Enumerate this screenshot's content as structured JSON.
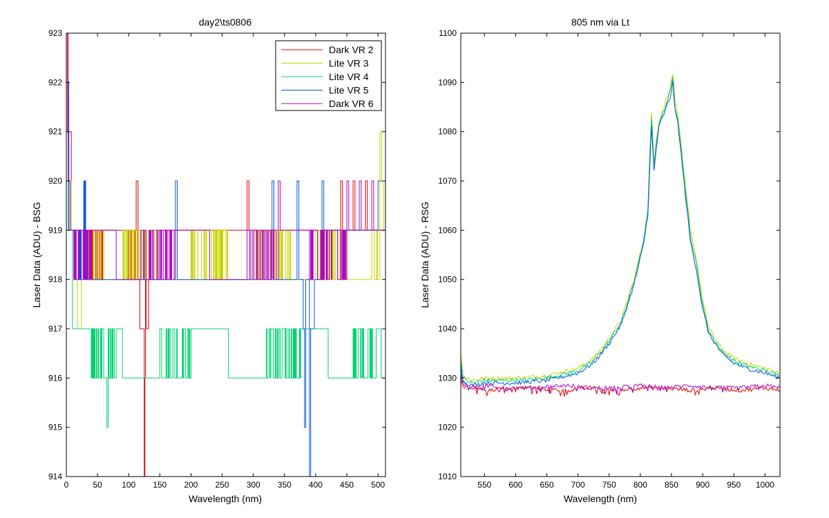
{
  "chart_data": [
    {
      "type": "line",
      "title": "day2\\ts0806",
      "xlabel": "Wavelength (nm)",
      "ylabel": "Laser Data (ADU) - BSG",
      "xlim": [
        0,
        512
      ],
      "ylim": [
        914,
        923
      ],
      "xticks": [
        0,
        50,
        100,
        150,
        200,
        250,
        300,
        350,
        400,
        450,
        500
      ],
      "yticks": [
        914,
        915,
        916,
        917,
        918,
        919,
        920,
        921,
        922,
        923
      ],
      "grid": false,
      "legend_position": "top-right",
      "series": [
        {
          "name": "Dark VR 2",
          "color": "#e00000",
          "baseline": 919,
          "levels": [
            [
              0,
              923
            ],
            [
              2,
              920.5
            ],
            [
              5,
              921
            ],
            [
              8,
              919
            ],
            [
              30,
              918.5
            ],
            [
              60,
              919
            ],
            [
              100,
              918.5
            ],
            [
              112,
              920
            ],
            [
              115,
              918
            ],
            [
              118,
              917
            ],
            [
              125,
              914
            ],
            [
              126,
              916
            ],
            [
              127,
              918
            ],
            [
              128,
              917
            ],
            [
              132,
              918
            ],
            [
              140,
              919
            ],
            [
              290,
              920
            ],
            [
              293,
              919
            ],
            [
              440,
              920
            ],
            [
              443,
              919
            ],
            [
              460,
              920
            ],
            [
              463,
              919
            ],
            [
              480,
              920
            ],
            [
              483,
              919
            ],
            [
              512,
              919
            ]
          ]
        },
        {
          "name": "Lite VR 3",
          "color": "#c8d400",
          "baseline": 918,
          "levels": [
            [
              0,
              920
            ],
            [
              8,
              919
            ],
            [
              14,
              918
            ],
            [
              18,
              917
            ],
            [
              24,
              918
            ],
            [
              28,
              920
            ],
            [
              31,
              918.5
            ],
            [
              60,
              918
            ],
            [
              90,
              918.5
            ],
            [
              150,
              918
            ],
            [
              200,
              918.5
            ],
            [
              260,
              918
            ],
            [
              300,
              918.5
            ],
            [
              360,
              918
            ],
            [
              400,
              918.5
            ],
            [
              450,
              918
            ],
            [
              490,
              918.5
            ],
            [
              503,
              921
            ],
            [
              506,
              920
            ],
            [
              509,
              919
            ],
            [
              512,
              919
            ]
          ]
        },
        {
          "name": "Lite VR 4",
          "color": "#00d070",
          "baseline": 916,
          "levels": [
            [
              0,
              922
            ],
            [
              3,
              919
            ],
            [
              10,
              917
            ],
            [
              30,
              916.5
            ],
            [
              60,
              916
            ],
            [
              65,
              915
            ],
            [
              67,
              916.5
            ],
            [
              80,
              917
            ],
            [
              90,
              916
            ],
            [
              150,
              916.5
            ],
            [
              200,
              917
            ],
            [
              260,
              916
            ],
            [
              320,
              916.5
            ],
            [
              380,
              917
            ],
            [
              420,
              916
            ],
            [
              460,
              916.5
            ],
            [
              500,
              917
            ],
            [
              505,
              916
            ],
            [
              512,
              917
            ]
          ]
        },
        {
          "name": "Lite VR 5",
          "color": "#0055e0",
          "baseline": 918,
          "levels": [
            [
              0,
              922
            ],
            [
              4,
              919
            ],
            [
              20,
              918.5
            ],
            [
              28,
              919.5
            ],
            [
              31,
              918
            ],
            [
              175,
              920
            ],
            [
              178,
              918
            ],
            [
              330,
              920
            ],
            [
              333,
              918
            ],
            [
              370,
              920
            ],
            [
              373,
              918
            ],
            [
              380,
              917
            ],
            [
              382,
              915
            ],
            [
              384,
              918
            ],
            [
              390,
              914
            ],
            [
              392,
              917
            ],
            [
              398,
              918
            ],
            [
              410,
              920
            ],
            [
              413,
              919
            ],
            [
              500,
              920
            ],
            [
              512,
              919
            ]
          ]
        },
        {
          "name": "Dark VR 6",
          "color": "#b000c8",
          "baseline": 919,
          "levels": [
            [
              0,
              923
            ],
            [
              3,
              920
            ],
            [
              6,
              919
            ],
            [
              12,
              918.5
            ],
            [
              40,
              919
            ],
            [
              80,
              918
            ],
            [
              120,
              918.5
            ],
            [
              175,
              919
            ],
            [
              230,
              918
            ],
            [
              290,
              918.5
            ],
            [
              340,
              920
            ],
            [
              343,
              919
            ],
            [
              390,
              918.5
            ],
            [
              450,
              920
            ],
            [
              453,
              919
            ],
            [
              470,
              920
            ],
            [
              473,
              919
            ],
            [
              490,
              920
            ],
            [
              493,
              919
            ],
            [
              512,
              919
            ]
          ]
        }
      ]
    },
    {
      "type": "line",
      "title": "805 nm via Lt",
      "xlabel": "Wavelength (nm)",
      "ylabel": "Laser Data (ADU) - RSG",
      "xlim": [
        512,
        1024
      ],
      "ylim": [
        1010,
        1100
      ],
      "xticks": [
        550,
        600,
        650,
        700,
        750,
        800,
        850,
        900,
        950,
        1000
      ],
      "yticks": [
        1010,
        1020,
        1030,
        1040,
        1050,
        1060,
        1070,
        1080,
        1090,
        1100
      ],
      "grid": false,
      "series": [
        {
          "color": "#c8d400",
          "x": [
            512,
            515,
            520,
            530,
            550,
            600,
            650,
            700,
            725,
            750,
            770,
            790,
            805,
            812,
            815,
            818,
            822,
            826,
            830,
            848,
            852,
            856,
            860,
            870,
            880,
            890,
            900,
            910,
            930,
            950,
            970,
            1000,
            1024
          ],
          "y": [
            1035,
            1031,
            1030,
            1029.5,
            1030,
            1030,
            1030.5,
            1032,
            1034,
            1038,
            1042,
            1050,
            1058,
            1064,
            1075,
            1084,
            1074,
            1079,
            1082,
            1089,
            1092,
            1086,
            1084,
            1072,
            1060,
            1054,
            1046,
            1040,
            1036,
            1034,
            1033,
            1032,
            1031
          ]
        },
        {
          "color": "#00d070",
          "x": [
            512,
            515,
            520,
            530,
            550,
            600,
            650,
            700,
            725,
            750,
            770,
            790,
            805,
            812,
            815,
            818,
            822,
            826,
            830,
            848,
            852,
            856,
            860,
            870,
            880,
            890,
            900,
            910,
            930,
            950,
            970,
            1000,
            1024
          ],
          "y": [
            1034,
            1030.5,
            1029.5,
            1029,
            1029.5,
            1029.5,
            1030,
            1031.5,
            1033.5,
            1037.5,
            1041.5,
            1049.5,
            1057.5,
            1063.5,
            1074,
            1083,
            1073,
            1078,
            1081.5,
            1088,
            1091,
            1085,
            1083,
            1071,
            1059,
            1053,
            1045,
            1039.5,
            1035.5,
            1033.5,
            1032.5,
            1031.5,
            1030.5
          ]
        },
        {
          "color": "#0055e0",
          "x": [
            512,
            515,
            520,
            530,
            550,
            600,
            650,
            700,
            725,
            750,
            770,
            790,
            805,
            812,
            815,
            818,
            822,
            826,
            830,
            848,
            852,
            856,
            860,
            870,
            880,
            890,
            900,
            910,
            930,
            950,
            970,
            1000,
            1024
          ],
          "y": [
            1033,
            1029.5,
            1029,
            1028.5,
            1029,
            1029,
            1029.5,
            1031,
            1033,
            1037,
            1041,
            1049,
            1057,
            1063,
            1072,
            1081,
            1072,
            1077,
            1081,
            1087,
            1090,
            1084,
            1082,
            1070,
            1058,
            1052,
            1044,
            1039,
            1035,
            1033,
            1032,
            1031,
            1030
          ]
        },
        {
          "color": "#e00000",
          "x": [
            512,
            515,
            520,
            540,
            560,
            580,
            620,
            680,
            720,
            760,
            800,
            840,
            880,
            920,
            960,
            1000,
            1024
          ],
          "y": [
            1030,
            1028.5,
            1028,
            1028,
            1027.5,
            1028,
            1028,
            1027.5,
            1028,
            1027.5,
            1028,
            1028,
            1027.5,
            1028,
            1027.5,
            1028,
            1027.5
          ]
        },
        {
          "color": "#b000c8",
          "x": [
            512,
            515,
            520,
            540,
            560,
            580,
            620,
            680,
            720,
            760,
            800,
            840,
            880,
            920,
            960,
            1000,
            1024
          ],
          "y": [
            1031,
            1029,
            1028.5,
            1028,
            1028.5,
            1028,
            1028,
            1028.5,
            1028,
            1028,
            1028.5,
            1028,
            1028.5,
            1028,
            1028,
            1028.5,
            1028
          ]
        }
      ]
    }
  ]
}
